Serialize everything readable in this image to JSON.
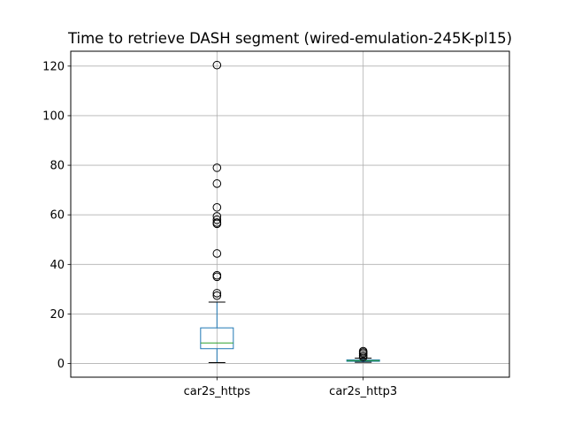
{
  "chart_data": {
    "type": "box",
    "title": "Time to retrieve DASH segment (wired-emulation-245K-pl15)",
    "xlabel": "",
    "ylabel": "",
    "categories": [
      "car2s_https",
      "car2s_http3"
    ],
    "ylim": [
      -5.5,
      126
    ],
    "yticks": [
      0,
      20,
      40,
      60,
      80,
      100,
      120
    ],
    "grid": true,
    "boxes": [
      {
        "category": "car2s_https",
        "whisker_low": 0.4,
        "q1": 6.0,
        "median": 8.3,
        "q3": 14.4,
        "whisker_high": 24.8,
        "fliers": [
          120.4,
          79.0,
          72.6,
          63.0,
          59.4,
          58.0,
          56.9,
          56.4,
          44.4,
          35.6,
          35.0,
          28.4,
          27.4
        ]
      },
      {
        "category": "car2s_http3",
        "whisker_low": 0.5,
        "q1": 0.9,
        "median": 1.2,
        "q3": 1.5,
        "whisker_high": 2.2,
        "fliers": [
          2.6,
          3.2,
          4.0,
          4.5,
          5.0
        ]
      }
    ],
    "colors": {
      "box": "#1f77b4",
      "median": "#2ca02c",
      "whisker": "#000000",
      "flier": "#000000",
      "grid": "#b0b0b0"
    }
  }
}
